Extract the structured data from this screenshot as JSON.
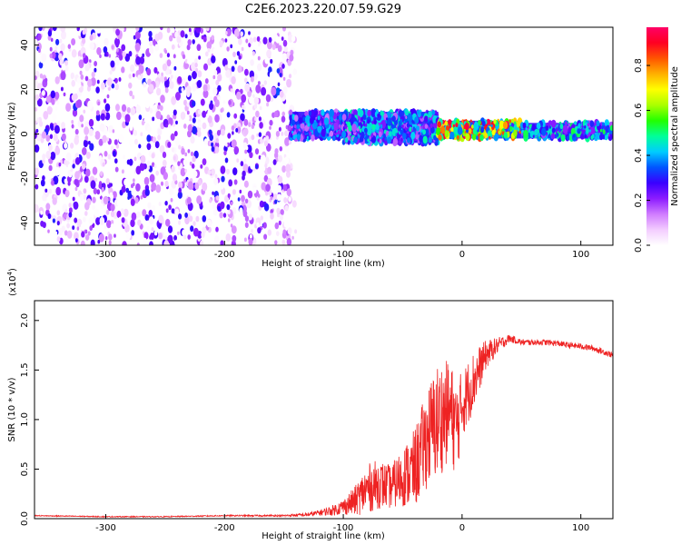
{
  "page_title": "C2E6.2023.220.07.59.G29",
  "chart_data": [
    {
      "type": "heatmap",
      "title": "C2E6.2023.220.07.59.G29",
      "xlabel": "Height of straight line (km)",
      "ylabel": "Frequency (Hz)",
      "xlim": [
        -360,
        127
      ],
      "ylim": [
        -50,
        48
      ],
      "xticks": [
        -300,
        -200,
        -100,
        0,
        100
      ],
      "xtick_labels": [
        "-300",
        "-200",
        "-100",
        "0",
        "100"
      ],
      "yticks": [
        -40,
        -20,
        0,
        20,
        40
      ],
      "ytick_labels": [
        "-40",
        "-20",
        "0",
        "20",
        "40"
      ],
      "grid": false,
      "colorbar": {
        "label": "Normalized spectral amplitude",
        "range": [
          0,
          0.97
        ],
        "ticks": [
          0.0,
          0.2,
          0.4,
          0.6,
          0.8
        ],
        "tick_labels": [
          "0.0",
          "0.2",
          "0.4",
          "0.6",
          "0.8"
        ],
        "colormap": [
          "#ffffff",
          "#f3ccff",
          "#d07cff",
          "#8c1cff",
          "#3a00ff",
          "#0055ff",
          "#00ccff",
          "#00ff99",
          "#22ff00",
          "#aaff00",
          "#ffff00",
          "#ffb000",
          "#ff5500",
          "#ff0022",
          "#ff0066"
        ]
      },
      "regions": [
        {
          "x_range": [
            -360,
            -140
          ],
          "y_range": [
            -50,
            48
          ],
          "amplitude": 0.15,
          "description_level": "scattered noise"
        },
        {
          "x_range": [
            -145,
            -100
          ],
          "y_range": [
            -2,
            10
          ],
          "amplitude": 0.4
        },
        {
          "x_range": [
            -100,
            -20
          ],
          "y_range": [
            -4,
            10
          ],
          "amplitude": 0.45
        },
        {
          "x_range": [
            -20,
            50
          ],
          "y_range": [
            -2,
            6
          ],
          "amplitude": 0.9
        },
        {
          "x_range": [
            50,
            127
          ],
          "y_range": [
            -2,
            5
          ],
          "amplitude": 0.5
        }
      ]
    },
    {
      "type": "line",
      "xlabel": "Height of straight line (km)",
      "ylabel": "SNR (10 * v/v)",
      "y_multiplier_label": "(x10",
      "y_multiplier_exp": "4",
      "y_multiplier_close": ")",
      "xlim": [
        -360,
        127
      ],
      "ylim": [
        0,
        2.2
      ],
      "xticks": [
        -300,
        -200,
        -100,
        0,
        100
      ],
      "xtick_labels": [
        "-300",
        "-200",
        "-100",
        "0",
        "100"
      ],
      "yticks": [
        0.0,
        0.5,
        1.0,
        1.5,
        2.0
      ],
      "ytick_labels": [
        "0.0",
        "0.5",
        "1.0",
        "1.5",
        "2.0"
      ],
      "grid": false,
      "series": [
        {
          "color": "#ee2222",
          "x": [
            -360,
            -300,
            -250,
            -200,
            -150,
            -130,
            -120,
            -110,
            -100,
            -90,
            -80,
            -70,
            -60,
            -50,
            -40,
            -30,
            -20,
            -10,
            -5,
            0,
            10,
            20,
            30,
            40,
            50,
            60,
            70,
            80,
            90,
            100,
            110,
            120,
            127
          ],
          "y": [
            0.03,
            0.02,
            0.02,
            0.03,
            0.03,
            0.04,
            0.06,
            0.08,
            0.12,
            0.18,
            0.3,
            0.35,
            0.32,
            0.42,
            0.5,
            0.8,
            1.0,
            1.1,
            0.9,
            1.15,
            1.4,
            1.65,
            1.75,
            1.82,
            1.78,
            1.78,
            1.78,
            1.77,
            1.75,
            1.74,
            1.72,
            1.68,
            1.65
          ],
          "noise": [
            0.005,
            0.005,
            0.005,
            0.006,
            0.01,
            0.02,
            0.03,
            0.05,
            0.08,
            0.15,
            0.25,
            0.25,
            0.22,
            0.3,
            0.4,
            0.5,
            0.6,
            0.5,
            0.5,
            0.35,
            0.3,
            0.15,
            0.08,
            0.04,
            0.03,
            0.03,
            0.03,
            0.03,
            0.03,
            0.03,
            0.03,
            0.03,
            0.03
          ]
        }
      ]
    }
  ]
}
